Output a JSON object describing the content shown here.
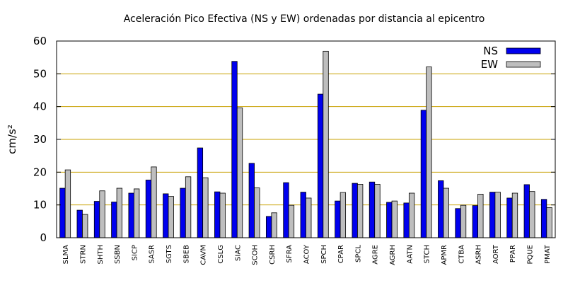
{
  "chart_data": {
    "type": "bar",
    "title": "Aceleración Pico Efectiva (NS y EW) ordenadas por distancia al epicentro",
    "ylabel": "cm/s²",
    "xlabel": "",
    "ylim": [
      0,
      60
    ],
    "yticks": [
      0,
      10,
      20,
      30,
      40,
      50,
      60
    ],
    "grid": "horizontal",
    "legend_position": "top-right",
    "categories": [
      "SLMA",
      "STRN",
      "SHTH",
      "SSBN",
      "SICP",
      "SASR",
      "SGTS",
      "SBEB",
      "CAVM",
      "CSLG",
      "SIAC",
      "SCOH",
      "CSRH",
      "SFRA",
      "ACOY",
      "SPCH",
      "CPAR",
      "SPCL",
      "AGRE",
      "AGRH",
      "AATN",
      "STCH",
      "APMR",
      "CTBA",
      "ASRH",
      "AORT",
      "PPAR",
      "PQUE",
      "PMAT"
    ],
    "series": [
      {
        "name": "NS",
        "color": "#0000ee",
        "values": [
          15.1,
          8.4,
          11.1,
          10.9,
          13.6,
          17.6,
          13.4,
          15.1,
          27.4,
          14.0,
          53.8,
          22.7,
          6.5,
          16.8,
          13.9,
          43.8,
          11.2,
          16.6,
          17.0,
          10.8,
          10.6,
          38.9,
          17.4,
          8.9,
          9.8,
          13.9,
          12.1,
          16.2,
          11.7
        ]
      },
      {
        "name": "EW",
        "color": "#bebebe",
        "values": [
          20.7,
          7.1,
          14.3,
          15.1,
          14.9,
          21.6,
          12.6,
          18.6,
          18.3,
          13.6,
          39.6,
          15.2,
          7.6,
          9.9,
          12.1,
          56.9,
          13.8,
          16.3,
          16.3,
          11.2,
          13.6,
          52.1,
          15.1,
          9.9,
          13.3,
          13.9,
          13.6,
          14.1,
          9.2
        ]
      }
    ],
    "colors": {
      "frame": "#000000",
      "grid": "#c8a000"
    }
  }
}
